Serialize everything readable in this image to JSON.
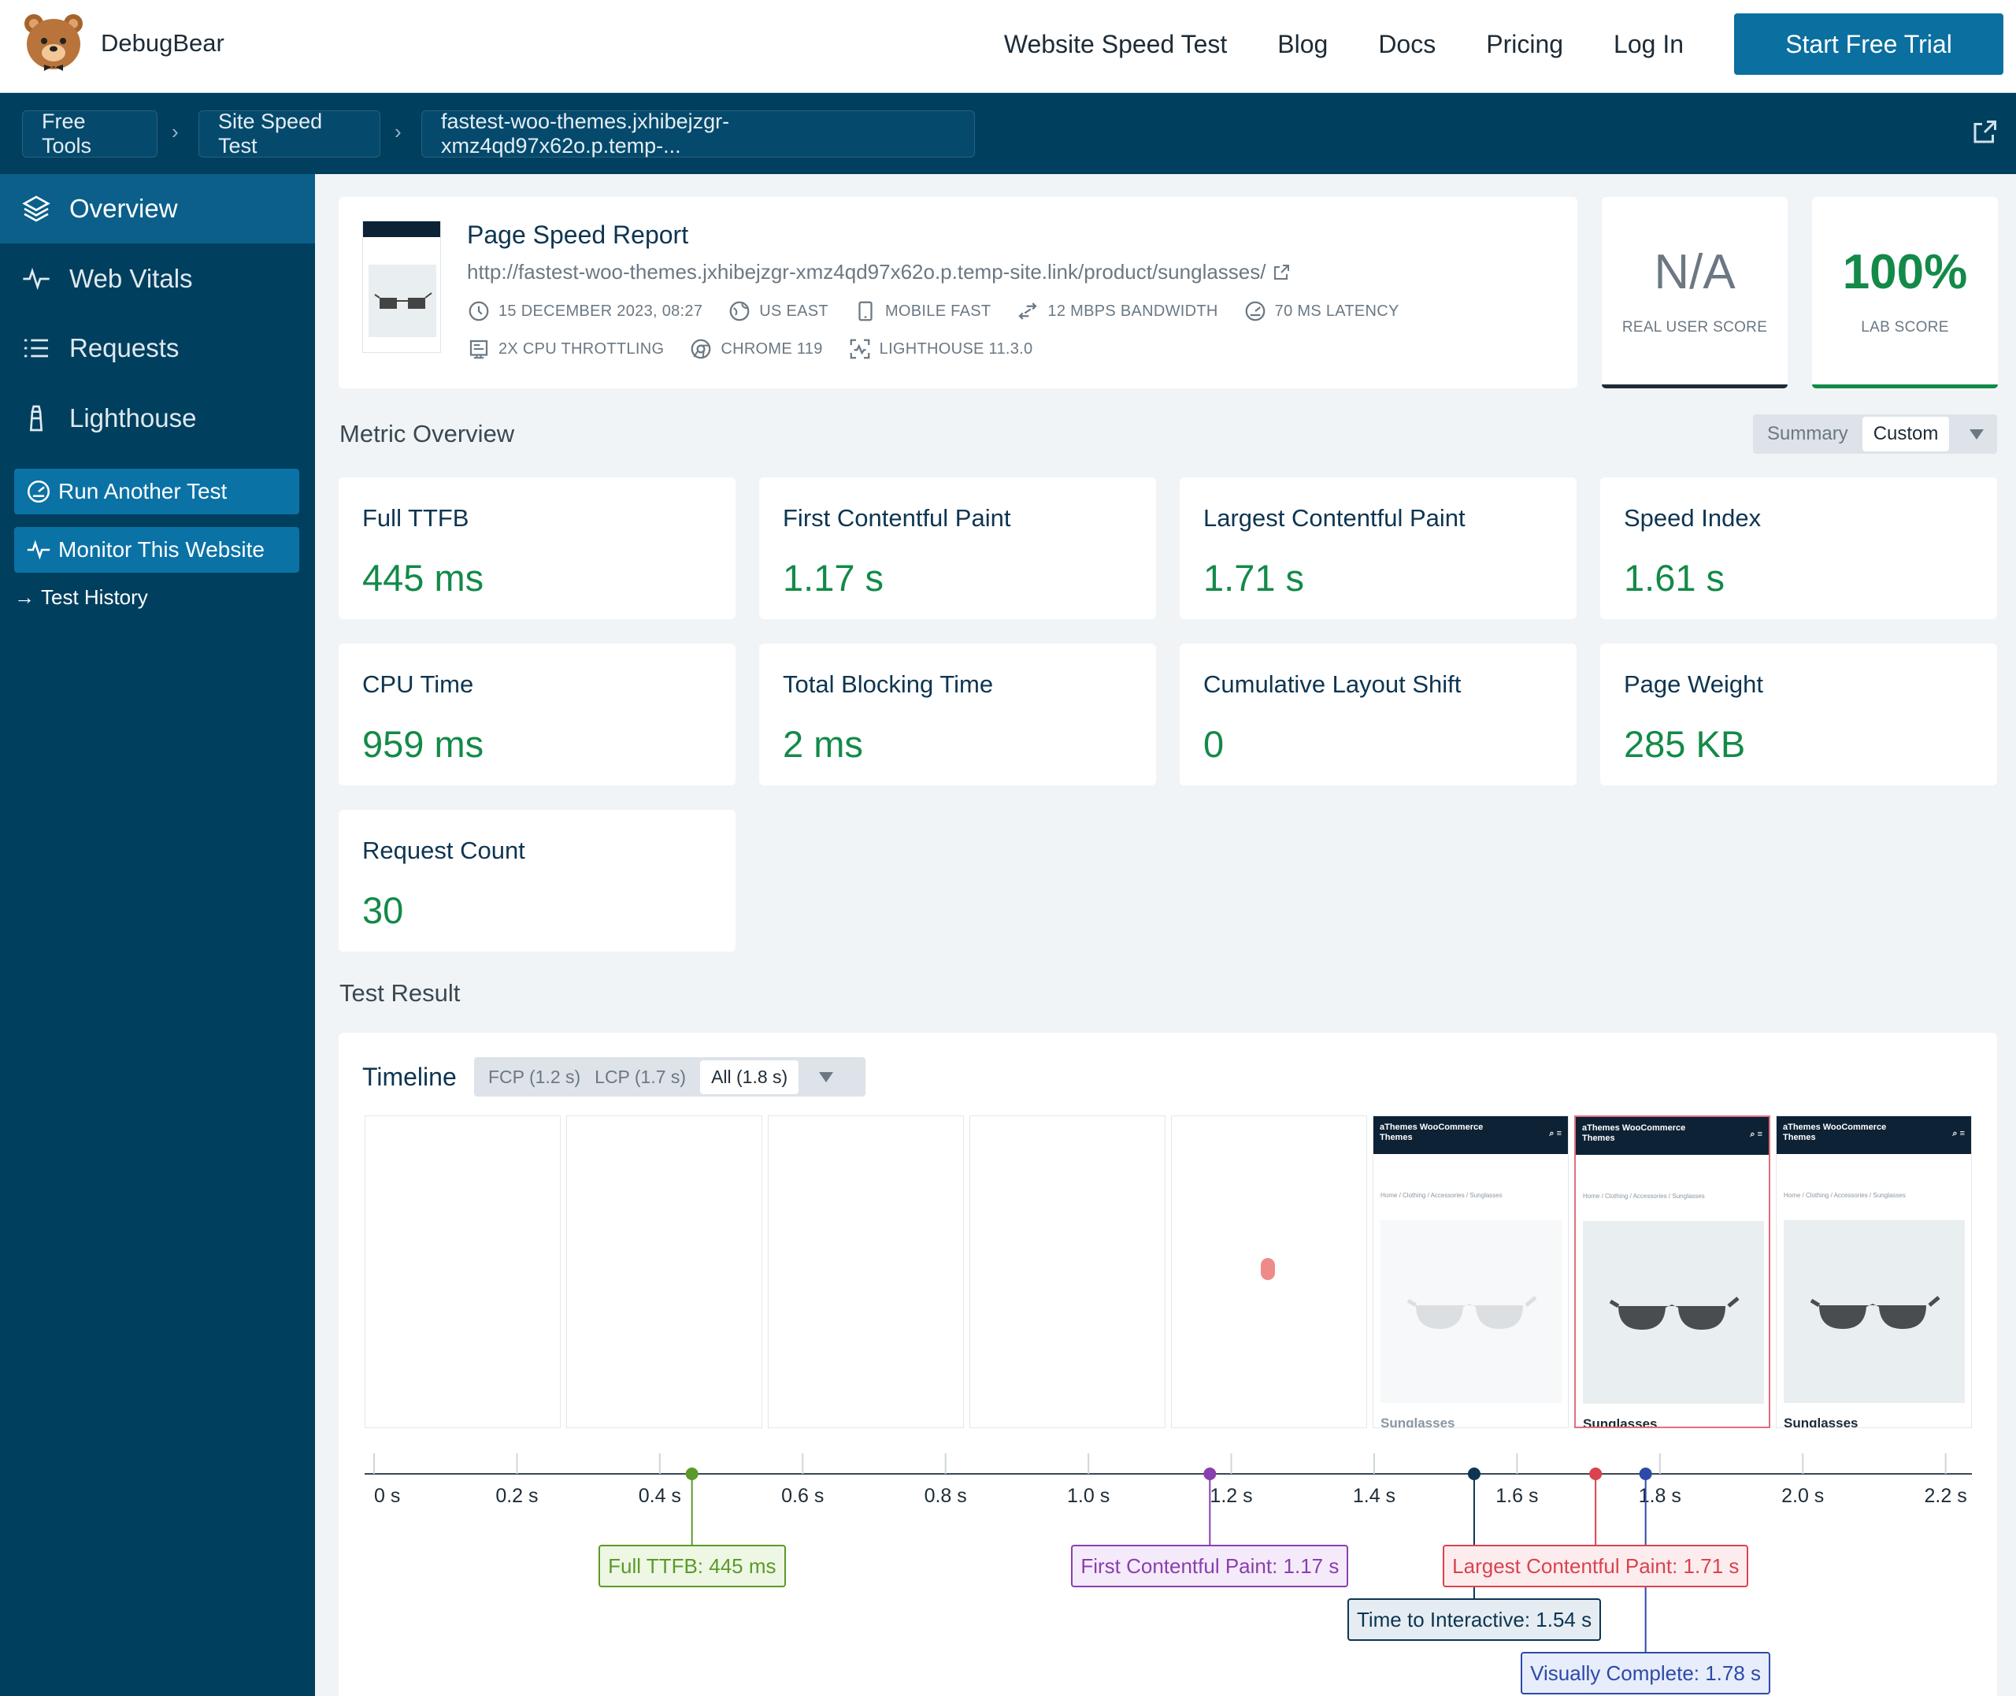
{
  "brand": {
    "name": "DebugBear"
  },
  "topnav": {
    "links": [
      "Website Speed Test",
      "Blog",
      "Docs",
      "Pricing",
      "Log In"
    ],
    "cta": "Start Free Trial"
  },
  "breadcrumb": [
    "Free Tools",
    "Site Speed Test",
    "fastest-woo-themes.jxhibejzgr-xmz4qd97x62o.p.temp-..."
  ],
  "sidebar": {
    "items": [
      {
        "label": "Overview",
        "icon": "layers-icon",
        "active": true
      },
      {
        "label": "Web Vitals",
        "icon": "pulse-icon"
      },
      {
        "label": "Requests",
        "icon": "list-icon"
      },
      {
        "label": "Lighthouse",
        "icon": "lighthouse-icon"
      }
    ],
    "buttons": [
      {
        "label": "Run Another Test",
        "icon": "gauge-icon"
      },
      {
        "label": "Monitor This Website",
        "icon": "pulse-icon"
      }
    ],
    "link": "Test History",
    "link_arrow": "→"
  },
  "report": {
    "title": "Page Speed Report",
    "url": "http://fastest-woo-themes.jxhibejzgr-xmz4qd97x62o.p.temp-site.link/product/sunglasses/",
    "meta_row1": [
      {
        "icon": "clock-icon",
        "text": "15 DECEMBER 2023, 08:27"
      },
      {
        "icon": "globe-icon",
        "text": "US EAST"
      },
      {
        "icon": "mobile-icon",
        "text": "MOBILE FAST"
      },
      {
        "icon": "bandwidth-icon",
        "text": "12 MBPS BANDWIDTH"
      },
      {
        "icon": "gauge-icon",
        "text": "70 MS LATENCY"
      }
    ],
    "meta_row2": [
      {
        "icon": "cpu-icon",
        "text": "2X CPU THROTTLING"
      },
      {
        "icon": "chrome-icon",
        "text": "CHROME 119"
      },
      {
        "icon": "lighthouse-scan-icon",
        "text": "LIGHTHOUSE 11.3.0"
      }
    ]
  },
  "scores": [
    {
      "value": "N/A",
      "label": "REAL USER SCORE",
      "color": "#6b7883",
      "underline": "#1d2b36"
    },
    {
      "value": "100%",
      "label": "LAB SCORE",
      "color": "#138a48",
      "underline": "#138a48"
    }
  ],
  "metric_overview": {
    "title": "Metric Overview",
    "toggle": {
      "options": [
        "Summary",
        "Custom"
      ],
      "selected": "Custom"
    },
    "metrics": [
      {
        "name": "Full TTFB",
        "value": "445 ms"
      },
      {
        "name": "First Contentful Paint",
        "value": "1.17 s"
      },
      {
        "name": "Largest Contentful Paint",
        "value": "1.71 s"
      },
      {
        "name": "Speed Index",
        "value": "1.61 s"
      },
      {
        "name": "CPU Time",
        "value": "959 ms"
      },
      {
        "name": "Total Blocking Time",
        "value": "2 ms"
      },
      {
        "name": "Cumulative Layout Shift",
        "value": "0"
      },
      {
        "name": "Page Weight",
        "value": "285 KB"
      },
      {
        "name": "Request Count",
        "value": "30"
      }
    ]
  },
  "test_result": {
    "title": "Test Result",
    "timeline": {
      "title": "Timeline",
      "toggle": {
        "options": [
          "FCP (1.2 s)",
          "LCP (1.7 s)",
          "All (1.8 s)"
        ],
        "selected": "All (1.8 s)"
      },
      "frame_header": "aThemes WooCommerce Themes",
      "frame_crumbs": "Home / Clothing / Accessories / Sunglasses",
      "frame_product": "Sunglasses",
      "frames": [
        {
          "state": "blank"
        },
        {
          "state": "blank"
        },
        {
          "state": "blank"
        },
        {
          "state": "blank"
        },
        {
          "state": "dot"
        },
        {
          "state": "faded"
        },
        {
          "state": "full",
          "highlight": true
        },
        {
          "state": "full"
        }
      ],
      "ticks": [
        "0 s",
        "0.2 s",
        "0.4 s",
        "0.6 s",
        "0.8 s",
        "1.0 s",
        "1.2 s",
        "1.4 s",
        "1.6 s",
        "1.8 s",
        "2.0 s",
        "2.2 s"
      ],
      "axis_max_s": 2.25,
      "markers": [
        {
          "label": "Full TTFB: 445 ms",
          "time_s": 0.445,
          "color": "#5a9a2a",
          "bg": "#eef7e4",
          "row": 0
        },
        {
          "label": "First Contentful Paint: 1.17 s",
          "time_s": 1.17,
          "color": "#8a3fae",
          "bg": "#f5eafa",
          "row": 0
        },
        {
          "label": "Largest Contentful Paint: 1.71 s",
          "time_s": 1.71,
          "color": "#d9434e",
          "bg": "#fdecee",
          "row": 0
        },
        {
          "label": "Time to Interactive: 1.54 s",
          "time_s": 1.54,
          "color": "#0d3551",
          "bg": "#e6edf2",
          "row": 1
        },
        {
          "label": "Visually Complete: 1.78 s",
          "time_s": 1.78,
          "color": "#2c4aa8",
          "bg": "#e8edfb",
          "row": 2
        }
      ]
    }
  }
}
